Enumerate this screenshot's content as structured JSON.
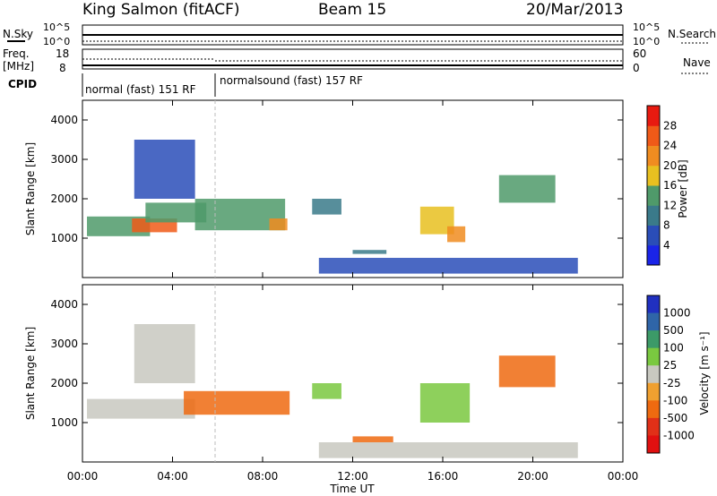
{
  "header": {
    "site": "King Salmon (fitACF)",
    "beam": "Beam 15",
    "date": "20/Mar/2013"
  },
  "top_panels": {
    "nsky_label": "N.Sky",
    "nsky_ticks": [
      "10^5",
      "10^0"
    ],
    "nsearch_label": "N.Search",
    "nsearch_ticks": [
      "10^5",
      "10^0"
    ],
    "freq_label": "Freq.",
    "freq_unit": "[MHz]",
    "freq_ticks": [
      "18",
      "8"
    ],
    "nave_label": "Nave",
    "nave_ticks": [
      "60",
      "0"
    ],
    "cpid_label": "CPID",
    "cpid_segments": [
      {
        "label": "normal (fast) 151 RF",
        "start_hour": 0,
        "end_hour": 6
      },
      {
        "label": "normalsound (fast) 157 RF",
        "start_hour": 6,
        "end_hour": 24
      }
    ]
  },
  "axes": {
    "xlabel": "Time UT",
    "x_ticks": [
      "00:00",
      "04:00",
      "08:00",
      "12:00",
      "16:00",
      "20:00",
      "00:00"
    ],
    "ylabel": "Slant Range [km]",
    "y_ticks": [
      "1000",
      "2000",
      "3000",
      "4000"
    ]
  },
  "power_colorbar": {
    "label": "Power [dB]",
    "ticks": [
      "4",
      "8",
      "12",
      "16",
      "20",
      "24",
      "28"
    ],
    "colors": [
      "#1a24e8",
      "#2a4db8",
      "#3a7a8a",
      "#4f9a6a",
      "#e8c020",
      "#f08c20",
      "#f05a18",
      "#e81a10"
    ]
  },
  "velocity_colorbar": {
    "label": "Velocity [m s⁻¹]",
    "ticks": [
      "1000",
      "500",
      "100",
      "25",
      "-25",
      "-100",
      "-500",
      "-1000"
    ],
    "colors": [
      "#2030c0",
      "#2f65a8",
      "#3c9a68",
      "#7ac840",
      "#c8c8c0",
      "#f0a030",
      "#ee6a10",
      "#e03018",
      "#e01010"
    ]
  },
  "chart_data": [
    {
      "type": "heatmap",
      "title": "Power",
      "xlabel": "Time UT",
      "ylabel": "Slant Range [km]",
      "xlim": [
        0,
        24
      ],
      "ylim": [
        0,
        4500
      ],
      "colorbar": "Power [dB]",
      "regions": [
        {
          "t0": 0.2,
          "t1": 3.0,
          "r0": 1050,
          "r1": 1550,
          "value": 12
        },
        {
          "t0": 2.2,
          "t1": 4.2,
          "r0": 1150,
          "r1": 1500,
          "value": 26
        },
        {
          "t0": 2.8,
          "t1": 5.5,
          "r0": 1400,
          "r1": 1900,
          "value": 14
        },
        {
          "t0": 5.0,
          "t1": 9.0,
          "r0": 1200,
          "r1": 2000,
          "value": 13
        },
        {
          "t0": 8.3,
          "t1": 9.1,
          "r0": 1200,
          "r1": 1500,
          "value": 22
        },
        {
          "t0": 2.3,
          "t1": 5.0,
          "r0": 2000,
          "r1": 3500,
          "value": 6
        },
        {
          "t0": 10.2,
          "t1": 11.5,
          "r0": 1600,
          "r1": 2000,
          "value": 10
        },
        {
          "t0": 12.0,
          "t1": 13.5,
          "r0": 600,
          "r1": 700,
          "value": 10
        },
        {
          "t0": 15.0,
          "t1": 16.5,
          "r0": 1100,
          "r1": 1800,
          "value": 18
        },
        {
          "t0": 16.2,
          "t1": 17.0,
          "r0": 900,
          "r1": 1300,
          "value": 20
        },
        {
          "t0": 18.5,
          "t1": 21.0,
          "r0": 1900,
          "r1": 2600,
          "value": 12
        },
        {
          "t0": 10.5,
          "t1": 22.0,
          "r0": 100,
          "r1": 500,
          "value": 6
        }
      ]
    },
    {
      "type": "heatmap",
      "title": "Velocity",
      "xlabel": "Time UT",
      "ylabel": "Slant Range [km]",
      "xlim": [
        0,
        24
      ],
      "ylim": [
        0,
        4500
      ],
      "colorbar": "Velocity [m s⁻¹]",
      "regions": [
        {
          "t0": 0.2,
          "t1": 5.0,
          "r0": 1100,
          "r1": 1600,
          "value": 0
        },
        {
          "t0": 4.5,
          "t1": 9.2,
          "r0": 1200,
          "r1": 1800,
          "value": -200
        },
        {
          "t0": 2.3,
          "t1": 5.0,
          "r0": 2000,
          "r1": 3500,
          "value": 0
        },
        {
          "t0": 10.2,
          "t1": 11.5,
          "r0": 1600,
          "r1": 2000,
          "value": 50
        },
        {
          "t0": 12.0,
          "t1": 13.8,
          "r0": 500,
          "r1": 650,
          "value": -150
        },
        {
          "t0": 15.0,
          "t1": 17.2,
          "r0": 1000,
          "r1": 2000,
          "value": 50
        },
        {
          "t0": 18.5,
          "t1": 21.0,
          "r0": 1900,
          "r1": 2700,
          "value": -200
        },
        {
          "t0": 10.5,
          "t1": 22.0,
          "r0": 100,
          "r1": 500,
          "value": 0
        }
      ]
    }
  ]
}
